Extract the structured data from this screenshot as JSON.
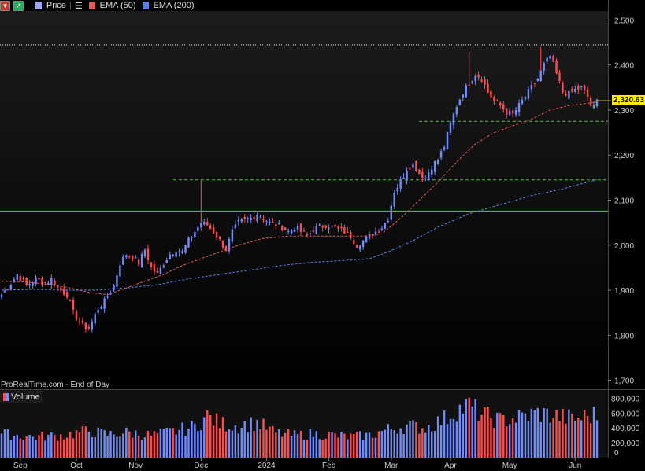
{
  "header": {
    "price_label": "Price",
    "ema50_label": "EMA (50)",
    "ema200_label": "EMA (200)"
  },
  "colors": {
    "up": "#6f8cff",
    "down": "#ff4b4b",
    "ema50": "#e05a50",
    "ema200": "#5a7fe8",
    "support_green": "#39c23a",
    "dashed_green": "#4fbf3a",
    "label_bg": "#ffeb00"
  },
  "footer": {
    "credit": "ProRealTime.com - End of Day",
    "volume_label": "Volume"
  },
  "last_price_label": "2,320.63",
  "chart_data": [
    {
      "type": "candlestick",
      "title": "Price",
      "ylim": [
        1680,
        2520
      ],
      "y_ticks": [
        1700,
        1800,
        1900,
        2000,
        2100,
        2200,
        2300,
        2400,
        2500
      ],
      "y_tick_labels": [
        "1,700",
        "1,800",
        "1,900",
        "2,000",
        "2,100",
        "2,200",
        "2,300",
        "2,400",
        "2,500"
      ],
      "x_labels": [
        "Sep",
        "Oct",
        "Nov",
        "Dec",
        "2024",
        "Feb",
        "Mar",
        "Apr",
        "May",
        "Jun"
      ],
      "x_label_positions": [
        6,
        24,
        43,
        64,
        85,
        105,
        125,
        144,
        163,
        184
      ],
      "n_bars": 192,
      "close_series_anchors": [
        [
          0,
          1890
        ],
        [
          3,
          1915
        ],
        [
          5,
          1935
        ],
        [
          8,
          1910
        ],
        [
          11,
          1925
        ],
        [
          14,
          1915
        ],
        [
          16,
          1925
        ],
        [
          18,
          1905
        ],
        [
          21,
          1890
        ],
        [
          23,
          1850
        ],
        [
          26,
          1820
        ],
        [
          28,
          1815
        ],
        [
          31,
          1860
        ],
        [
          33,
          1875
        ],
        [
          36,
          1910
        ],
        [
          38,
          1960
        ],
        [
          40,
          1980
        ],
        [
          42,
          1975
        ],
        [
          44,
          1960
        ],
        [
          46,
          1990
        ],
        [
          48,
          1950
        ],
        [
          50,
          1935
        ],
        [
          52,
          1960
        ],
        [
          54,
          1980
        ],
        [
          56,
          1990
        ],
        [
          58,
          1985
        ],
        [
          60,
          2010
        ],
        [
          62,
          2030
        ],
        [
          64,
          2050
        ],
        [
          66,
          2045
        ],
        [
          68,
          2030
        ],
        [
          70,
          2010
        ],
        [
          72,
          1990
        ],
        [
          74,
          2030
        ],
        [
          76,
          2050
        ],
        [
          78,
          2055
        ],
        [
          80,
          2060
        ],
        [
          82,
          2070
        ],
        [
          84,
          2060
        ],
        [
          86,
          2050
        ],
        [
          88,
          2045
        ],
        [
          90,
          2040
        ],
        [
          92,
          2030
        ],
        [
          94,
          2040
        ],
        [
          96,
          2030
        ],
        [
          98,
          2020
        ],
        [
          100,
          2035
        ],
        [
          102,
          2040
        ],
        [
          104,
          2045
        ],
        [
          106,
          2040
        ],
        [
          108,
          2035
        ],
        [
          110,
          2030
        ],
        [
          112,
          2020
        ],
        [
          114,
          2000
        ],
        [
          116,
          2010
        ],
        [
          118,
          2020
        ],
        [
          120,
          2030
        ],
        [
          122,
          2040
        ],
        [
          124,
          2060
        ],
        [
          125,
          2090
        ],
        [
          126,
          2120
        ],
        [
          128,
          2140
        ],
        [
          130,
          2170
        ],
        [
          132,
          2180
        ],
        [
          134,
          2160
        ],
        [
          136,
          2150
        ],
        [
          138,
          2175
        ],
        [
          140,
          2190
        ],
        [
          142,
          2220
        ],
        [
          144,
          2270
        ],
        [
          146,
          2310
        ],
        [
          148,
          2340
        ],
        [
          150,
          2360
        ],
        [
          152,
          2380
        ],
        [
          154,
          2370
        ],
        [
          156,
          2340
        ],
        [
          158,
          2320
        ],
        [
          160,
          2310
        ],
        [
          162,
          2295
        ],
        [
          164,
          2290
        ],
        [
          166,
          2310
        ],
        [
          168,
          2330
        ],
        [
          170,
          2350
        ],
        [
          172,
          2370
        ],
        [
          174,
          2400
        ],
        [
          176,
          2420
        ],
        [
          178,
          2380
        ],
        [
          180,
          2340
        ],
        [
          182,
          2335
        ],
        [
          184,
          2345
        ],
        [
          186,
          2350
        ],
        [
          188,
          2330
        ],
        [
          189,
          2310
        ],
        [
          190,
          2305
        ],
        [
          191,
          2320
        ]
      ],
      "ema50_anchors": [
        [
          0,
          1920
        ],
        [
          8,
          1918
        ],
        [
          16,
          1912
        ],
        [
          22,
          1905
        ],
        [
          28,
          1895
        ],
        [
          34,
          1890
        ],
        [
          40,
          1905
        ],
        [
          46,
          1920
        ],
        [
          52,
          1935
        ],
        [
          58,
          1955
        ],
        [
          64,
          1970
        ],
        [
          70,
          1985
        ],
        [
          76,
          2000
        ],
        [
          84,
          2015
        ],
        [
          92,
          2020
        ],
        [
          100,
          2020
        ],
        [
          108,
          2020
        ],
        [
          116,
          2020
        ],
        [
          122,
          2025
        ],
        [
          128,
          2060
        ],
        [
          134,
          2100
        ],
        [
          140,
          2140
        ],
        [
          146,
          2185
        ],
        [
          152,
          2225
        ],
        [
          158,
          2250
        ],
        [
          164,
          2265
        ],
        [
          170,
          2280
        ],
        [
          176,
          2300
        ],
        [
          182,
          2310
        ],
        [
          188,
          2315
        ],
        [
          191,
          2318
        ]
      ],
      "ema200_anchors": [
        [
          0,
          1900
        ],
        [
          10,
          1902
        ],
        [
          20,
          1900
        ],
        [
          30,
          1900
        ],
        [
          40,
          1905
        ],
        [
          50,
          1912
        ],
        [
          60,
          1925
        ],
        [
          70,
          1935
        ],
        [
          80,
          1945
        ],
        [
          90,
          1955
        ],
        [
          100,
          1962
        ],
        [
          110,
          1966
        ],
        [
          118,
          1970
        ],
        [
          124,
          1985
        ],
        [
          132,
          2010
        ],
        [
          140,
          2040
        ],
        [
          150,
          2070
        ],
        [
          160,
          2090
        ],
        [
          170,
          2110
        ],
        [
          180,
          2125
        ],
        [
          188,
          2140
        ],
        [
          191,
          2145
        ]
      ],
      "horizontal_lines": [
        {
          "kind": "dotted",
          "value": 2445,
          "color": "#ffffff"
        },
        {
          "kind": "dashed",
          "value": 2275,
          "color": "#4fbf3a"
        },
        {
          "kind": "dashed",
          "value": 2145,
          "color": "#4fbf3a"
        },
        {
          "kind": "solid",
          "value": 2075,
          "color": "#39c23a"
        }
      ],
      "spikes": [
        [
          64,
          2145
        ],
        [
          150,
          2430
        ],
        [
          173,
          2440
        ]
      ],
      "last_price": 2320.63
    },
    {
      "type": "bar",
      "title": "Volume",
      "ylim": [
        0,
        900000
      ],
      "y_ticks": [
        0,
        200000,
        400000,
        600000,
        800000
      ],
      "y_tick_labels": [
        "0",
        "200,000",
        "400,000",
        "600,000",
        "800,000"
      ],
      "volume_anchors": [
        [
          0,
          320000
        ],
        [
          10,
          280000
        ],
        [
          20,
          300000
        ],
        [
          28,
          360000
        ],
        [
          34,
          310000
        ],
        [
          40,
          340000
        ],
        [
          48,
          300000
        ],
        [
          56,
          360000
        ],
        [
          62,
          420000
        ],
        [
          66,
          560000
        ],
        [
          70,
          460000
        ],
        [
          76,
          430000
        ],
        [
          82,
          470000
        ],
        [
          88,
          330000
        ],
        [
          94,
          300000
        ],
        [
          100,
          320000
        ],
        [
          106,
          300000
        ],
        [
          112,
          280000
        ],
        [
          118,
          300000
        ],
        [
          124,
          380000
        ],
        [
          130,
          430000
        ],
        [
          136,
          400000
        ],
        [
          142,
          520000
        ],
        [
          146,
          640000
        ],
        [
          150,
          700000
        ],
        [
          154,
          580000
        ],
        [
          160,
          500000
        ],
        [
          166,
          540000
        ],
        [
          172,
          600000
        ],
        [
          178,
          560000
        ],
        [
          184,
          520000
        ],
        [
          188,
          560000
        ],
        [
          191,
          580000
        ]
      ]
    }
  ]
}
